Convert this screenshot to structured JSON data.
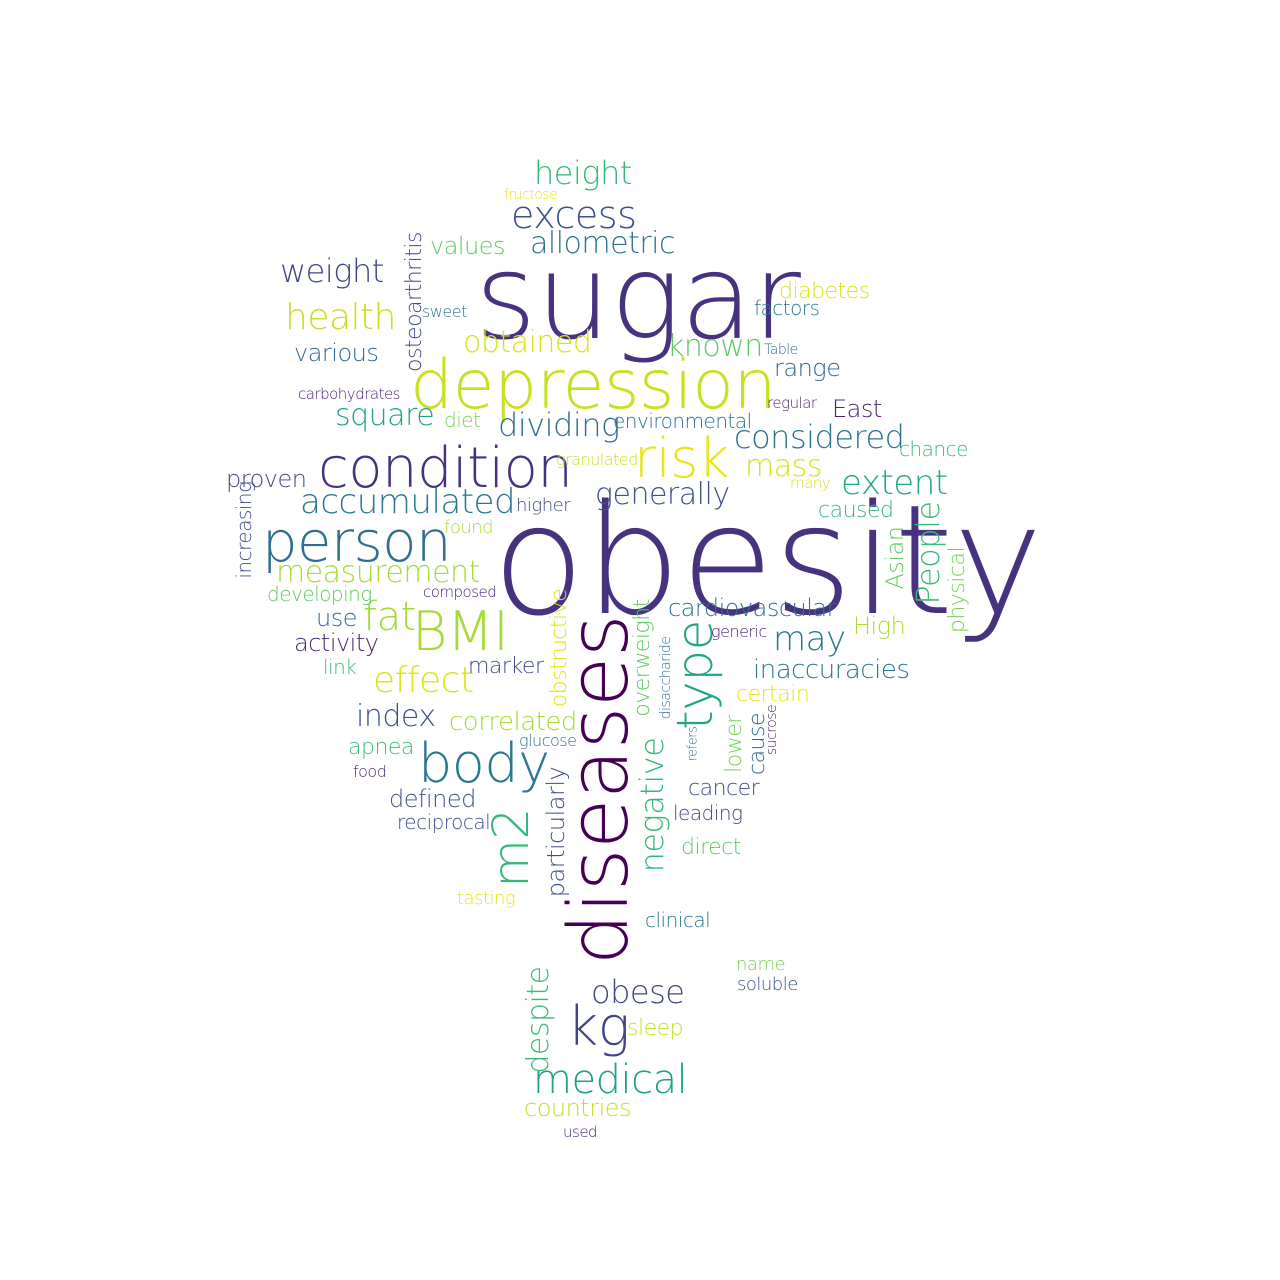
{
  "words": [
    {
      "text": "obesity",
      "color": "#46327e"
    },
    {
      "text": "sugar",
      "color": "#46327e"
    },
    {
      "text": "diseases",
      "color": "#440154"
    },
    {
      "text": "depression",
      "color": "#c8e020"
    },
    {
      "text": "condition",
      "color": "#46327e"
    },
    {
      "text": "person",
      "color": "#2e6e8e"
    },
    {
      "text": "body",
      "color": "#2a788e"
    },
    {
      "text": "BMI",
      "color": "#a5db36"
    },
    {
      "text": "risk",
      "color": "#e7e419"
    },
    {
      "text": "type",
      "color": "#20a486"
    },
    {
      "text": "m2",
      "color": "#35b779"
    },
    {
      "text": "kg",
      "color": "#414487"
    },
    {
      "text": "medical",
      "color": "#1fa187"
    },
    {
      "text": "excess",
      "color": "#3b528b"
    },
    {
      "text": "accumulated",
      "color": "#2a788e"
    },
    {
      "text": "fat",
      "color": "#a0da39"
    },
    {
      "text": "effect",
      "color": "#dde318"
    },
    {
      "text": "health",
      "color": "#c8e020"
    },
    {
      "text": "height",
      "color": "#35b779"
    },
    {
      "text": "weight",
      "color": "#414487"
    },
    {
      "text": "measurement",
      "color": "#a5db36"
    },
    {
      "text": "considered",
      "color": "#2c728e"
    },
    {
      "text": "extent",
      "color": "#22a884"
    },
    {
      "text": "generally",
      "color": "#3b528b"
    },
    {
      "text": "allometric",
      "color": "#2c728e"
    },
    {
      "text": "dividing",
      "color": "#2e6e8e"
    },
    {
      "text": "square",
      "color": "#1fa187"
    },
    {
      "text": "obtained",
      "color": "#d8e219"
    },
    {
      "text": "known",
      "color": "#5ec962"
    },
    {
      "text": "mass",
      "color": "#d8e219"
    },
    {
      "text": "index",
      "color": "#3b528b"
    },
    {
      "text": "obese",
      "color": "#414487"
    },
    {
      "text": "may",
      "color": "#2a788e"
    },
    {
      "text": "negative",
      "color": "#35b779"
    },
    {
      "text": "despite",
      "color": "#3bbb75"
    },
    {
      "text": "correlated",
      "color": "#a5db36"
    },
    {
      "text": "inaccuracies",
      "color": "#2a788e"
    },
    {
      "text": "cardiovascular",
      "color": "#2c728e"
    },
    {
      "text": "People",
      "color": "#3bbb75"
    },
    {
      "text": "Asian",
      "color": "#5ec962"
    },
    {
      "text": "physical",
      "color": "#7ad151"
    },
    {
      "text": "values",
      "color": "#5ec962"
    },
    {
      "text": "various",
      "color": "#31688e"
    },
    {
      "text": "osteoarthritis",
      "color": "#3e4a89"
    },
    {
      "text": "overweight",
      "color": "#5ec962"
    },
    {
      "text": "particularly",
      "color": "#3e4a89"
    },
    {
      "text": "obstructive",
      "color": "#dde318"
    },
    {
      "text": "countries",
      "color": "#c2df23"
    },
    {
      "text": "diabetes",
      "color": "#dde318"
    },
    {
      "text": "factors",
      "color": "#2a788e"
    },
    {
      "text": "range",
      "color": "#31688e"
    },
    {
      "text": "East",
      "color": "#482576"
    },
    {
      "text": "chance",
      "color": "#3bbb75"
    },
    {
      "text": "caused",
      "color": "#35b779"
    },
    {
      "text": "High",
      "color": "#addc30"
    },
    {
      "text": "certain",
      "color": "#e7e419"
    },
    {
      "text": "lower",
      "color": "#7ad151"
    },
    {
      "text": "cause",
      "color": "#31688e"
    },
    {
      "text": "cancer",
      "color": "#3e4a89"
    },
    {
      "text": "leading",
      "color": "#414487"
    },
    {
      "text": "direct",
      "color": "#5ec962"
    },
    {
      "text": "clinical",
      "color": "#2a788e"
    },
    {
      "text": "proven",
      "color": "#414487"
    },
    {
      "text": "increasing",
      "color": "#3e4a89"
    },
    {
      "text": "developing",
      "color": "#5ec962"
    },
    {
      "text": "use",
      "color": "#31688e"
    },
    {
      "text": "activity",
      "color": "#482576"
    },
    {
      "text": "link",
      "color": "#3bbb75"
    },
    {
      "text": "marker",
      "color": "#3e4a89"
    },
    {
      "text": "apnea",
      "color": "#3bbb75"
    },
    {
      "text": "defined",
      "color": "#3b528b"
    },
    {
      "text": "reciprocal",
      "color": "#3b528b"
    },
    {
      "text": "food",
      "color": "#482576"
    },
    {
      "text": "glucose",
      "color": "#2e6e8e"
    },
    {
      "text": "diet",
      "color": "#7ad151"
    },
    {
      "text": "environmental",
      "color": "#2c728e"
    },
    {
      "text": "higher",
      "color": "#3e4a89"
    },
    {
      "text": "found",
      "color": "#addc30"
    },
    {
      "text": "granulated",
      "color": "#c8e020"
    },
    {
      "text": "many",
      "color": "#d8e219"
    },
    {
      "text": "composed",
      "color": "#482576"
    },
    {
      "text": "carbohydrates",
      "color": "#482576"
    },
    {
      "text": "sweet",
      "color": "#2c728e"
    },
    {
      "text": "fructose",
      "color": "#e7e419"
    },
    {
      "text": "Table",
      "color": "#2c728e"
    },
    {
      "text": "regular",
      "color": "#482576"
    },
    {
      "text": "generic",
      "color": "#482576"
    },
    {
      "text": "disaccharide",
      "color": "#2e6e8e"
    },
    {
      "text": "refers",
      "color": "#2c728e"
    },
    {
      "text": "sucrose",
      "color": "#482576"
    },
    {
      "text": "sleep",
      "color": "#c2df23"
    },
    {
      "text": "tasting",
      "color": "#e7e419"
    },
    {
      "text": "name",
      "color": "#7ad151"
    },
    {
      "text": "soluble",
      "color": "#3b528b"
    },
    {
      "text": "used",
      "color": "#482576"
    }
  ]
}
